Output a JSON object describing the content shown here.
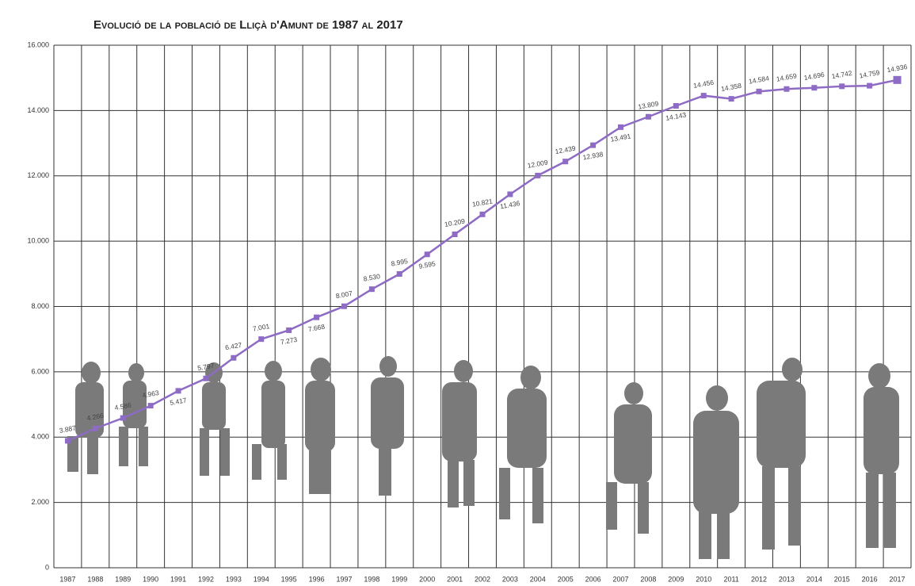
{
  "chart_data": {
    "type": "line",
    "title": "Evolució de la població de Lliçà d'Amunt de 1987 al 2017",
    "categories": [
      "1987",
      "1988",
      "1989",
      "1990",
      "1991",
      "1992",
      "1993",
      "1994",
      "1995",
      "1996",
      "1997",
      "1998",
      "1999",
      "2000",
      "2001",
      "2002",
      "2003",
      "2004",
      "2005",
      "2006",
      "2007",
      "2008",
      "2009",
      "2010",
      "2011",
      "2012",
      "2013",
      "2014",
      "2015",
      "2016",
      "2017"
    ],
    "series": [
      {
        "color": "#8e6bc4",
        "values": [
          3887,
          4266,
          4586,
          4963,
          5417,
          5797,
          6427,
          7001,
          7273,
          7668,
          8007,
          8530,
          8995,
          9595,
          10209,
          10821,
          11436,
          12009,
          12439,
          12938,
          13491,
          13809,
          14143,
          14456,
          14358,
          14584,
          14659,
          14696,
          14742,
          14759,
          14936
        ],
        "value_labels": [
          "3.887",
          "4.266",
          "4.586",
          "4.963",
          "5.417",
          "5.797",
          "6.427",
          "7.001",
          "7.273",
          "7.668",
          "8.007",
          "8.530",
          "8.995",
          "9.595",
          "10.209",
          "10.821",
          "11.436",
          "12.009",
          "12.439",
          "12.938",
          "13.491",
          "13.809",
          "14.143",
          "14.456",
          "14.358",
          "14.584",
          "14.659",
          "14.696",
          "14.742",
          "14.759",
          "14.936"
        ]
      }
    ],
    "ylim": [
      0,
      16000
    ],
    "yticks": [
      0,
      {
        "value": 2000,
        "label": "2.000"
      },
      {
        "value": 4000,
        "label": "4.000"
      },
      {
        "value": 6000,
        "label": "6.000"
      },
      {
        "value": 8000,
        "label": "8.000"
      },
      {
        "value": 10000,
        "label": "10.000"
      },
      {
        "value": 12000,
        "label": "12.000"
      },
      {
        "value": 14000,
        "label": "14.000"
      },
      {
        "value": 16000,
        "label": "16.000"
      }
    ],
    "grid": true
  }
}
